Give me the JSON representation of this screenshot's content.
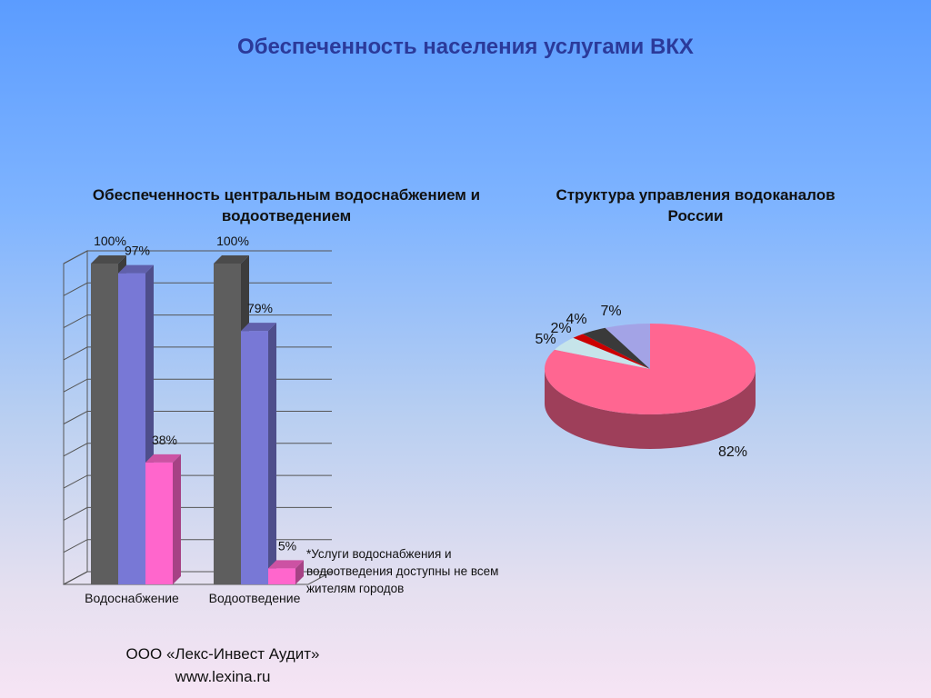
{
  "title": "Обеспеченность населения услугами ВКХ",
  "note": "*Услуги водоснабжения и водоотведения доступны не всем жителям городов",
  "footer": {
    "company": "ООО «Лекс-Инвест Аудит»",
    "url": "www.lexina.ru"
  },
  "chart_data": [
    {
      "type": "bar",
      "title": "Обеспеченность центральным водоснабжением и водоотведением",
      "categories": [
        "Водоснабжение",
        "Водоотведение"
      ],
      "series": [
        {
          "color": "#5e5e5e",
          "values": [
            100,
            100
          ]
        },
        {
          "color": "#7878d6",
          "values": [
            97,
            79
          ]
        },
        {
          "color": "#ff66cc",
          "values": [
            38,
            5
          ]
        }
      ],
      "data_labels": [
        [
          "100%",
          "97%",
          "38%"
        ],
        [
          "100%",
          "79%",
          "5%"
        ]
      ],
      "ylim": [
        0,
        100
      ],
      "grid": true
    },
    {
      "type": "pie",
      "title": "Структура управления водоканалов России",
      "values": [
        82,
        5,
        2,
        4,
        7
      ],
      "labels": [
        "82%",
        "5%",
        "2%",
        "4%",
        "7%"
      ],
      "colors": [
        "#ff6691",
        "#c6e4ea",
        "#cc0000",
        "#3a3a3a",
        "#a3a3e6"
      ]
    }
  ]
}
